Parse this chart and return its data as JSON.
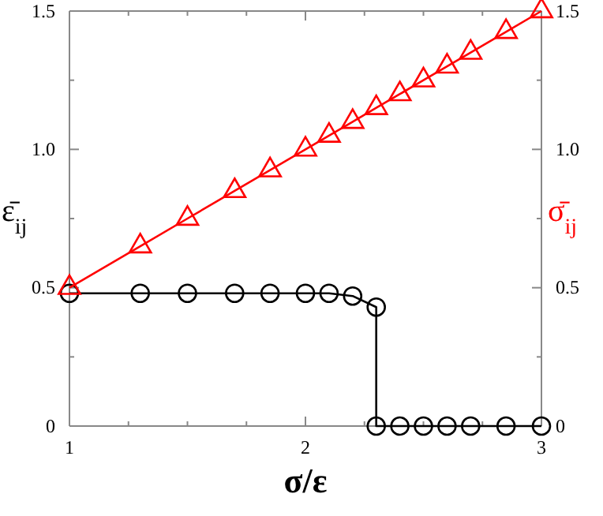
{
  "chart_data": {
    "type": "line",
    "xlabel": "σ/ε",
    "ylabel": "ε̄$_{ij}$",
    "y2label": "σ̄$_{ij}$",
    "xlim": [
      1,
      3
    ],
    "xticks": [
      1,
      {
        "value": 1.25,
        "label": null
      },
      {
        "value": 1.5,
        "label": null
      },
      {
        "value": 1.75,
        "label": null
      },
      2,
      {
        "value": 2.25,
        "label": null
      },
      {
        "value": 2.5,
        "label": null
      },
      {
        "value": 2.75,
        "label": null
      },
      3
    ],
    "ylim": [
      0,
      1.5
    ],
    "yticks": [
      0,
      {
        "value": 0.25,
        "label": null
      },
      0.5,
      {
        "value": 0.75,
        "label": null
      },
      {
        "value": 1,
        "label": "1.0"
      },
      {
        "value": 1.25,
        "label": null
      },
      1.5
    ],
    "y2lim": [
      0,
      1.5
    ],
    "y2ticks": [
      0,
      {
        "value": 0.25,
        "label": null
      },
      0.5,
      {
        "value": 0.75,
        "label": null
      },
      {
        "value": 1,
        "label": "1.0"
      },
      {
        "value": 1.25,
        "label": null
      },
      1.5
    ],
    "series": [
      {
        "color": "#000000",
        "marker": "circle",
        "x": [
          1,
          1.3,
          1.5,
          1.7,
          1.85,
          2,
          2.1,
          2.2,
          2.3,
          2.3,
          2.4,
          2.5,
          2.6,
          2.7,
          2.85,
          3
        ],
        "values": [
          0.48,
          0.48,
          0.48,
          0.48,
          0.48,
          0.48,
          0.48,
          0.47,
          0.43,
          0,
          0,
          0,
          0,
          0,
          0,
          0
        ]
      },
      {
        "color": "#ff0000",
        "marker": "triangle",
        "axis": "y2",
        "x": [
          1,
          1.3,
          1.5,
          1.7,
          1.85,
          2,
          2.1,
          2.2,
          2.3,
          2.4,
          2.5,
          2.6,
          2.7,
          2.85,
          3
        ],
        "values": [
          0.5,
          0.65,
          0.75,
          0.85,
          0.925,
          1,
          1.05,
          1.1,
          1.15,
          1.2,
          1.25,
          1.3,
          1.35,
          1.425,
          1.5
        ]
      }
    ]
  }
}
